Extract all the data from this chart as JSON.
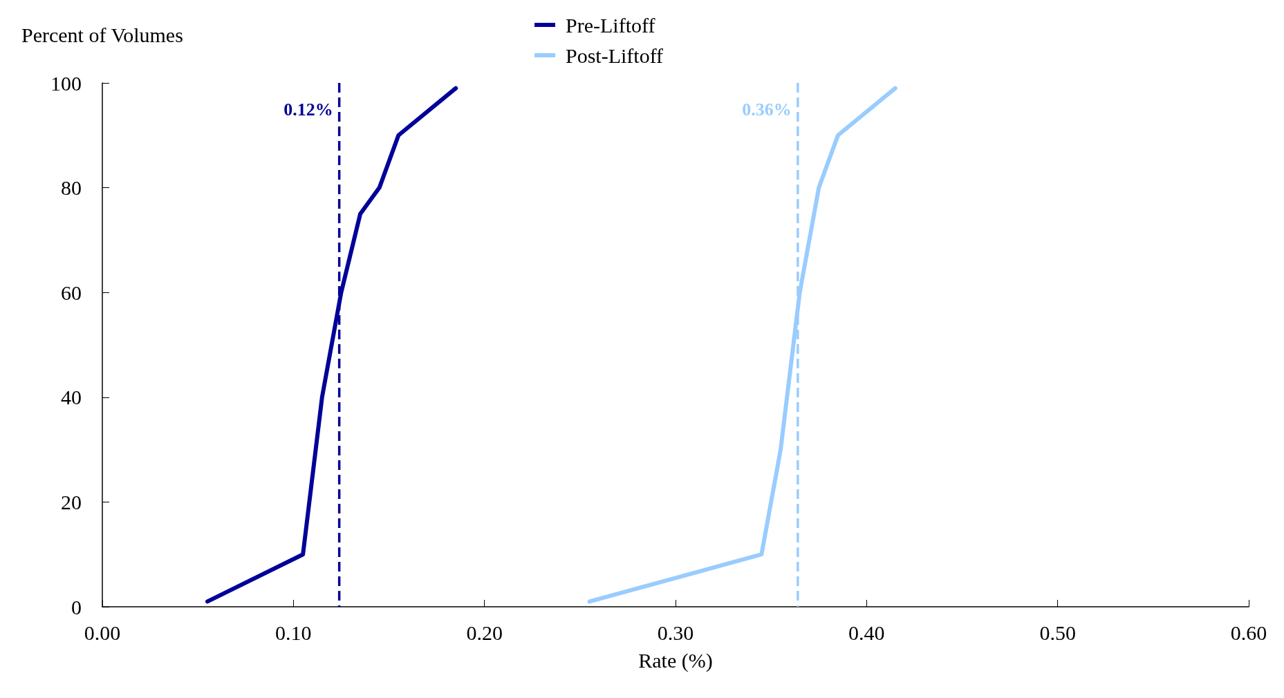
{
  "chart_data": {
    "type": "line",
    "ylabel": "Percent of Volumes",
    "xlabel": "Rate (%)",
    "xlim": [
      0,
      0.6
    ],
    "xticks": [
      {
        "value": 0,
        "label": "0.00"
      },
      {
        "value": 0.1,
        "label": "0.10"
      },
      {
        "value": 0.2,
        "label": "0.20"
      },
      {
        "value": 0.3,
        "label": "0.30"
      },
      {
        "value": 0.4,
        "label": "0.40"
      },
      {
        "value": 0.5,
        "label": "0.50"
      },
      {
        "value": 0.6,
        "label": "0.60"
      }
    ],
    "ylim": [
      0,
      100
    ],
    "yticks": [
      0,
      20,
      40,
      60,
      80,
      100
    ],
    "series": [
      {
        "name": "Pre-Liftoff",
        "color": "#000099",
        "x": [
          0.055,
          0.105,
          0.115,
          0.125,
          0.135,
          0.145,
          0.155,
          0.185
        ],
        "values": [
          1,
          10,
          40,
          60,
          75,
          80,
          90,
          99
        ]
      },
      {
        "name": "Post-Liftoff",
        "color": "#99ccff",
        "x": [
          0.255,
          0.345,
          0.355,
          0.365,
          0.375,
          0.385,
          0.415
        ],
        "values": [
          1,
          10,
          30,
          60,
          80,
          90,
          99
        ]
      }
    ],
    "ref_lines": [
      {
        "axis": "x",
        "value": 0.124,
        "label": "0.12%",
        "color": "#000099",
        "line_style": "dashed"
      },
      {
        "axis": "x",
        "value": 0.364,
        "label": "0.36%",
        "color": "#99ccff",
        "line_style": "dashed"
      }
    ],
    "legend": "top",
    "grid": false,
    "marker": "none",
    "line_style": "solid"
  }
}
